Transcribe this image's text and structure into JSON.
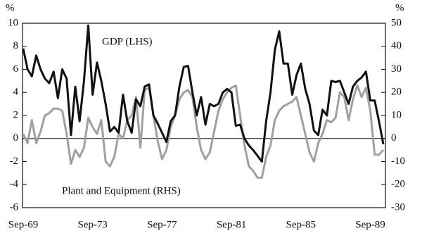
{
  "chart_data": {
    "type": "line",
    "ylabel": "%",
    "y2label": "%",
    "categories": [
      "Sep-69",
      null,
      null,
      null,
      null,
      null,
      null,
      null,
      null,
      null,
      null,
      null,
      null,
      null,
      null,
      null,
      "Sep-73",
      null,
      null,
      null,
      null,
      null,
      null,
      null,
      null,
      null,
      null,
      null,
      null,
      null,
      null,
      null,
      "Sep-77",
      null,
      null,
      null,
      null,
      null,
      null,
      null,
      null,
      null,
      null,
      null,
      null,
      null,
      null,
      null,
      "Sep-81",
      null,
      null,
      null,
      null,
      null,
      null,
      null,
      null,
      null,
      null,
      null,
      null,
      null,
      null,
      null,
      "Sep-85",
      null,
      null,
      null,
      null,
      null,
      null,
      null,
      null,
      null,
      null,
      null,
      null,
      null,
      null,
      null,
      "Sep-89",
      null,
      null,
      null
    ],
    "series": [
      {
        "name": "GDP (LHS)",
        "color": "#111111",
        "axis": "y",
        "values": [
          7.8,
          6.0,
          5.4,
          7.2,
          6.0,
          5.2,
          4.8,
          5.8,
          3.5,
          6.0,
          5.2,
          0.3,
          4.5,
          1.5,
          5.0,
          9.8,
          3.8,
          6.6,
          5.0,
          3.0,
          0.6,
          1.0,
          0.5,
          3.8,
          1.5,
          0.5,
          3.4,
          2.8,
          4.5,
          4.7,
          2.0,
          1.3,
          0.5,
          -0.3,
          1.5,
          2.0,
          4.5,
          6.2,
          6.3,
          4.0,
          2.0,
          3.6,
          1.2,
          3.0,
          2.8,
          3.0,
          4.0,
          4.3,
          4.0,
          1.1,
          1.2,
          0.0,
          -0.6,
          -1.0,
          -1.5,
          -2.0,
          1.5,
          4.0,
          7.7,
          9.3,
          6.5,
          6.5,
          3.8,
          5.5,
          6.5,
          4.3,
          3.0,
          0.7,
          0.3,
          2.5,
          2.0,
          5.0,
          4.9,
          5.0,
          4.0,
          3.0,
          4.5,
          5.0,
          5.3,
          5.8,
          3.3,
          3.3,
          1.5,
          -0.5
        ]
      },
      {
        "name": "Plant and Equipment (RHS)",
        "color": "#a0a0a0",
        "axis": "y2",
        "values": [
          2,
          -2,
          8,
          -2,
          3,
          10,
          11,
          13,
          13,
          12,
          2,
          -11,
          -5,
          -8,
          -4,
          9,
          5,
          2,
          8,
          -10,
          -12,
          -8,
          2,
          0,
          8,
          10,
          18,
          -4,
          21,
          22,
          10,
          -1,
          -9,
          -5,
          5,
          10,
          17,
          20,
          21,
          18,
          5,
          -5,
          -9,
          -6,
          3,
          12,
          17,
          20,
          22,
          23,
          10,
          -3,
          -12,
          -14,
          -17,
          -17,
          -8,
          -3,
          8,
          12,
          14,
          15,
          16,
          18,
          10,
          2,
          -6,
          -10,
          -2,
          2,
          8,
          7,
          9,
          20,
          18,
          8,
          17,
          23,
          18,
          22,
          12,
          -7,
          -7,
          -5
        ]
      }
    ],
    "ylim": [
      -6,
      10
    ],
    "yticks": [
      10,
      8,
      6,
      4,
      2,
      0,
      -2,
      -4,
      -6
    ],
    "y2lim": [
      -30,
      50
    ],
    "y2ticks": [
      50,
      40,
      30,
      20,
      10,
      0,
      -10,
      -20,
      -30
    ]
  }
}
